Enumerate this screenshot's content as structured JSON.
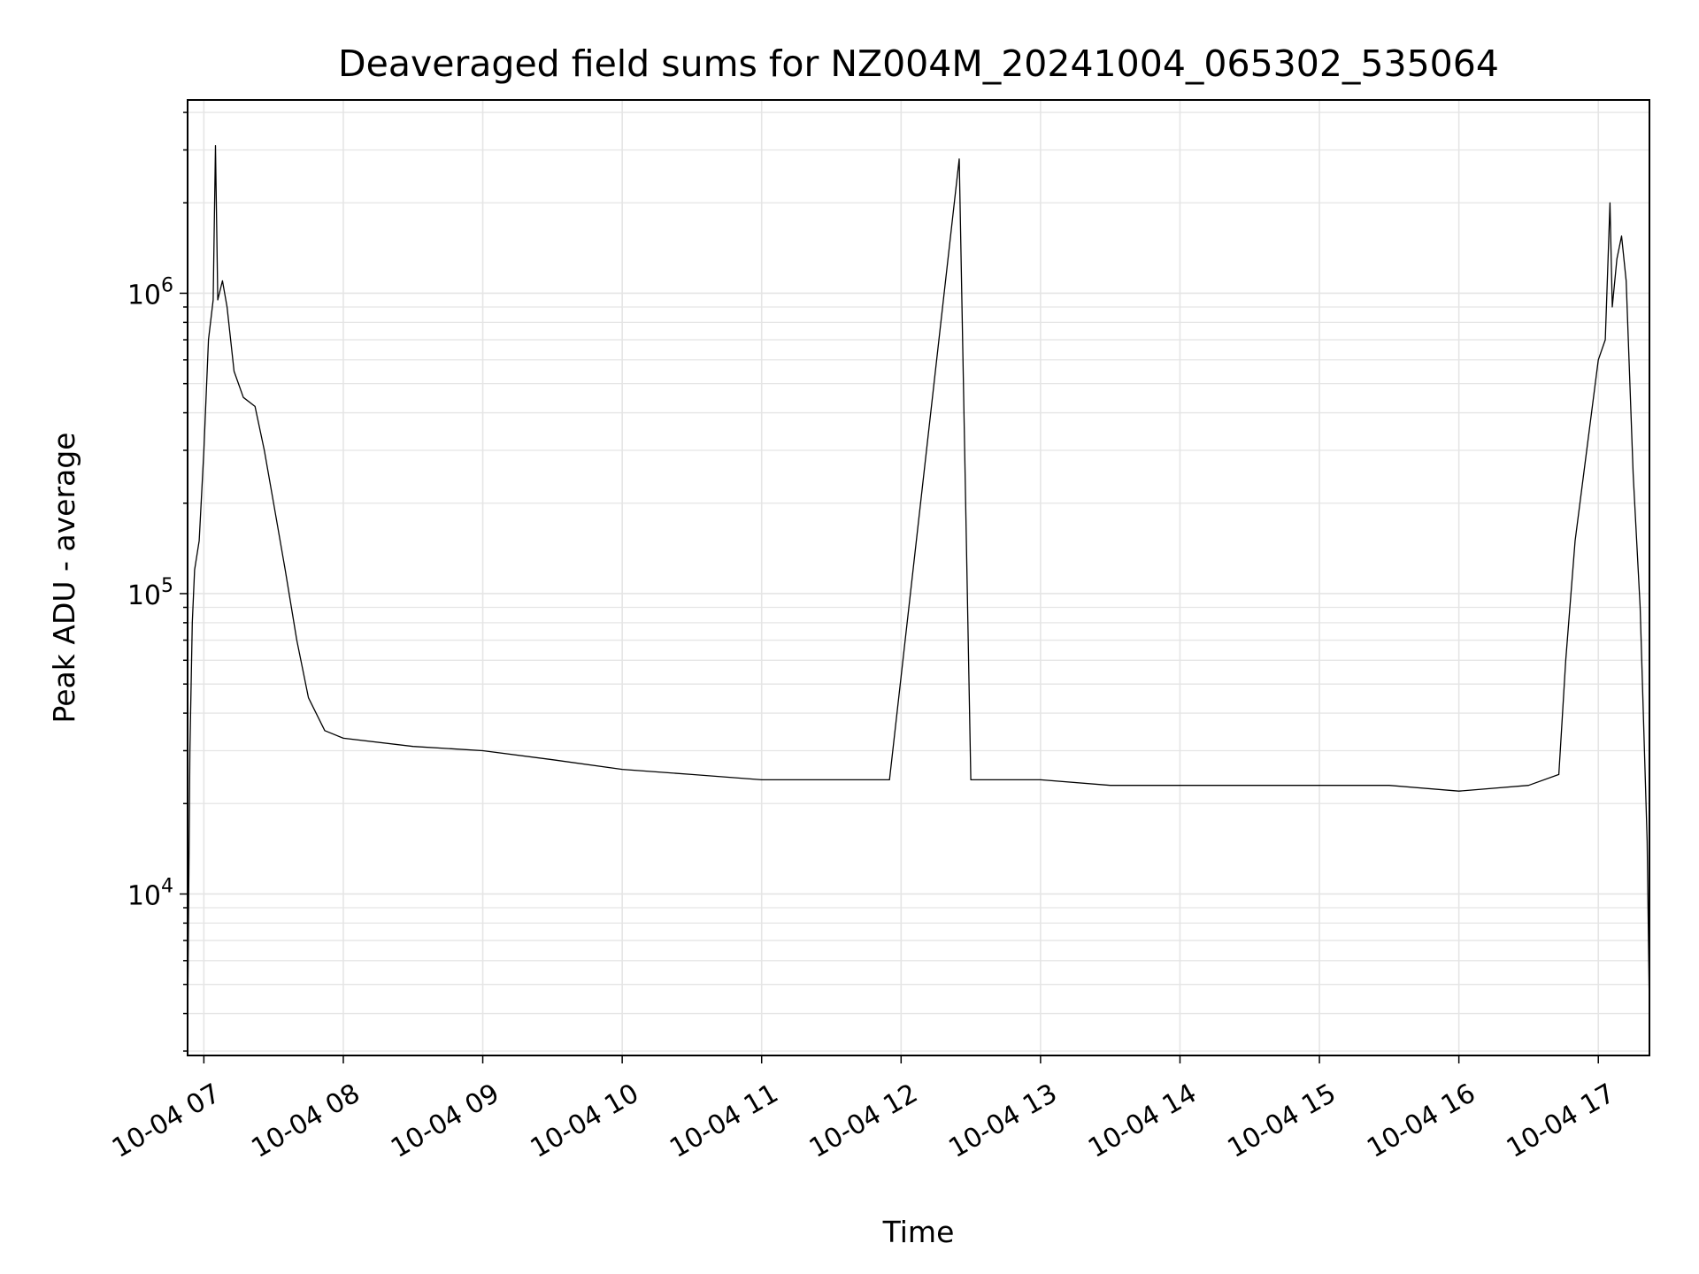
{
  "colors": {
    "line": "#000000",
    "grid": "#e5e5e5",
    "axes": "#000000",
    "background": "#ffffff"
  },
  "chart_data": {
    "type": "line",
    "title": "Deaveraged field sums for NZ004M_20241004_065302_535064",
    "xlabel": "Time",
    "ylabel": "Peak ADU - average",
    "yscale": "log",
    "grid": true,
    "xlim": [
      "2024-10-04 06:53",
      "2024-10-04 17:22"
    ],
    "ylim": [
      2900,
      4400000
    ],
    "x_ticks": [
      {
        "value": "2024-10-04 07:00",
        "label": "10-04 07"
      },
      {
        "value": "2024-10-04 08:00",
        "label": "10-04 08"
      },
      {
        "value": "2024-10-04 09:00",
        "label": "10-04 09"
      },
      {
        "value": "2024-10-04 10:00",
        "label": "10-04 10"
      },
      {
        "value": "2024-10-04 11:00",
        "label": "10-04 11"
      },
      {
        "value": "2024-10-04 12:00",
        "label": "10-04 12"
      },
      {
        "value": "2024-10-04 13:00",
        "label": "10-04 13"
      },
      {
        "value": "2024-10-04 14:00",
        "label": "10-04 14"
      },
      {
        "value": "2024-10-04 15:00",
        "label": "10-04 15"
      },
      {
        "value": "2024-10-04 16:00",
        "label": "10-04 16"
      },
      {
        "value": "2024-10-04 17:00",
        "label": "10-04 17"
      }
    ],
    "y_ticks": [
      {
        "value": 10000,
        "base": "10",
        "exp": "4"
      },
      {
        "value": 100000,
        "base": "10",
        "exp": "5"
      },
      {
        "value": 1000000,
        "base": "10",
        "exp": "6"
      }
    ],
    "series": [
      {
        "color": "#000000",
        "points": [
          [
            "2024-10-04 06:53",
            3500
          ],
          [
            "2024-10-04 06:54",
            30000
          ],
          [
            "2024-10-04 06:55",
            80000
          ],
          [
            "2024-10-04 06:56",
            120000
          ],
          [
            "2024-10-04 06:58",
            150000
          ],
          [
            "2024-10-04 07:00",
            300000
          ],
          [
            "2024-10-04 07:02",
            700000
          ],
          [
            "2024-10-04 07:04",
            950000
          ],
          [
            "2024-10-04 07:05",
            3100000
          ],
          [
            "2024-10-04 07:06",
            950000
          ],
          [
            "2024-10-04 07:08",
            1100000
          ],
          [
            "2024-10-04 07:10",
            900000
          ],
          [
            "2024-10-04 07:13",
            550000
          ],
          [
            "2024-10-04 07:17",
            450000
          ],
          [
            "2024-10-04 07:22",
            420000
          ],
          [
            "2024-10-04 07:26",
            300000
          ],
          [
            "2024-10-04 07:30",
            200000
          ],
          [
            "2024-10-04 07:35",
            120000
          ],
          [
            "2024-10-04 07:40",
            70000
          ],
          [
            "2024-10-04 07:45",
            45000
          ],
          [
            "2024-10-04 07:52",
            35000
          ],
          [
            "2024-10-04 08:00",
            33000
          ],
          [
            "2024-10-04 08:30",
            31000
          ],
          [
            "2024-10-04 09:00",
            30000
          ],
          [
            "2024-10-04 09:30",
            28000
          ],
          [
            "2024-10-04 10:00",
            26000
          ],
          [
            "2024-10-04 10:30",
            25000
          ],
          [
            "2024-10-04 11:00",
            24000
          ],
          [
            "2024-10-04 11:30",
            24000
          ],
          [
            "2024-10-04 11:55",
            24000
          ],
          [
            "2024-10-04 12:25",
            2800000
          ],
          [
            "2024-10-04 12:30",
            24000
          ],
          [
            "2024-10-04 13:00",
            24000
          ],
          [
            "2024-10-04 13:30",
            23000
          ],
          [
            "2024-10-04 14:00",
            23000
          ],
          [
            "2024-10-04 14:30",
            23000
          ],
          [
            "2024-10-04 15:00",
            23000
          ],
          [
            "2024-10-04 15:30",
            23000
          ],
          [
            "2024-10-04 16:00",
            22000
          ],
          [
            "2024-10-04 16:30",
            23000
          ],
          [
            "2024-10-04 16:43",
            25000
          ],
          [
            "2024-10-04 16:46",
            60000
          ],
          [
            "2024-10-04 16:50",
            150000
          ],
          [
            "2024-10-04 16:55",
            300000
          ],
          [
            "2024-10-04 17:00",
            600000
          ],
          [
            "2024-10-04 17:03",
            700000
          ],
          [
            "2024-10-04 17:05",
            2000000
          ],
          [
            "2024-10-04 17:06",
            900000
          ],
          [
            "2024-10-04 17:08",
            1300000
          ],
          [
            "2024-10-04 17:10",
            1550000
          ],
          [
            "2024-10-04 17:12",
            1100000
          ],
          [
            "2024-10-04 17:15",
            250000
          ],
          [
            "2024-10-04 17:18",
            90000
          ],
          [
            "2024-10-04 17:21",
            15000
          ],
          [
            "2024-10-04 17:22",
            4000
          ]
        ]
      }
    ]
  }
}
